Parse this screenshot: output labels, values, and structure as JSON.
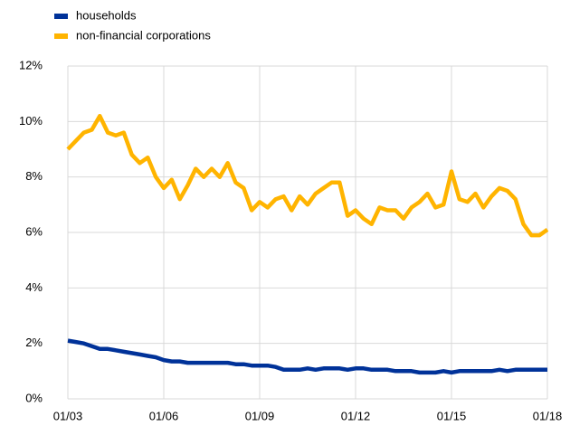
{
  "chart_data": {
    "type": "line",
    "categories": [
      "01/03",
      null,
      null,
      null,
      null,
      null,
      null,
      null,
      null,
      null,
      null,
      null,
      "01/06",
      null,
      null,
      null,
      null,
      null,
      null,
      null,
      null,
      null,
      null,
      null,
      "01/09",
      null,
      null,
      null,
      null,
      null,
      null,
      null,
      null,
      null,
      null,
      null,
      "01/12",
      null,
      null,
      null,
      null,
      null,
      null,
      null,
      null,
      null,
      null,
      null,
      "01/15",
      null,
      null,
      null,
      null,
      null,
      null,
      null,
      null,
      null,
      null,
      null,
      "01/18"
    ],
    "series": [
      {
        "name": "households",
        "color": "#003299",
        "values": [
          2.1,
          2.05,
          2.0,
          1.9,
          1.8,
          1.8,
          1.75,
          1.7,
          1.65,
          1.6,
          1.55,
          1.5,
          1.4,
          1.35,
          1.35,
          1.3,
          1.3,
          1.3,
          1.3,
          1.3,
          1.3,
          1.25,
          1.25,
          1.2,
          1.2,
          1.2,
          1.15,
          1.05,
          1.05,
          1.05,
          1.1,
          1.05,
          1.1,
          1.1,
          1.1,
          1.05,
          1.1,
          1.1,
          1.05,
          1.05,
          1.05,
          1.0,
          1.0,
          1.0,
          0.95,
          0.95,
          0.95,
          1.0,
          0.95,
          1.0,
          1.0,
          1.0,
          1.0,
          1.0,
          1.05,
          1.0,
          1.05,
          1.05,
          1.05,
          1.05,
          1.05
        ]
      },
      {
        "name": "non-financial corporations",
        "color": "#ffb400",
        "values": [
          9.0,
          9.3,
          9.6,
          9.7,
          10.2,
          9.6,
          9.5,
          9.6,
          8.8,
          8.5,
          8.7,
          8.0,
          7.6,
          7.9,
          7.2,
          7.7,
          8.3,
          8.0,
          8.3,
          8.0,
          8.5,
          7.8,
          7.6,
          6.8,
          7.1,
          6.9,
          7.2,
          7.3,
          6.8,
          7.3,
          7.0,
          7.4,
          7.6,
          7.8,
          7.8,
          6.6,
          6.8,
          6.5,
          6.3,
          6.9,
          6.8,
          6.8,
          6.5,
          6.9,
          7.1,
          7.4,
          6.9,
          7.0,
          8.2,
          7.2,
          7.1,
          7.4,
          6.9,
          7.3,
          7.6,
          7.5,
          7.2,
          6.3,
          5.9,
          5.9,
          6.1
        ]
      }
    ],
    "ylim": [
      0,
      12
    ],
    "yticks": [
      {
        "value": 0,
        "label": "0%"
      },
      {
        "value": 2,
        "label": "2%"
      },
      {
        "value": 4,
        "label": "4%"
      },
      {
        "value": 6,
        "label": "6%"
      },
      {
        "value": 8,
        "label": "8%"
      },
      {
        "value": 10,
        "label": "10%"
      },
      {
        "value": 12,
        "label": "12%"
      }
    ],
    "grid": true,
    "legend": "top-left"
  }
}
